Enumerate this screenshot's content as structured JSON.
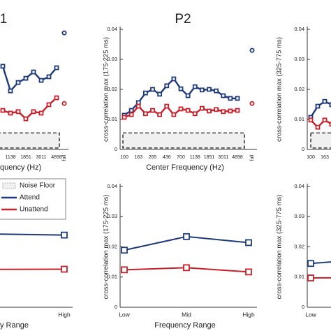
{
  "chart_data": [
    {
      "type": "line",
      "title": "1",
      "xlabel": "quency (Hz)",
      "categories": [
        null,
        "1138",
        null,
        "1851",
        null,
        "3011",
        null,
        "4898"
      ],
      "extra_category": "full",
      "ylim": [
        0,
        0.04
      ],
      "noise_floor": 0.0055,
      "series": [
        {
          "name": "Attend",
          "color": "#1f3a7a",
          "values": [
            0.0277,
            0.0195,
            0.0223,
            0.0237,
            0.0258,
            0.023,
            0.0242,
            0.0272
          ],
          "extra_value": 0.0388
        },
        {
          "name": "Unattend",
          "color": "#c8202a",
          "values": [
            0.013,
            0.0121,
            0.0126,
            0.0102,
            0.0126,
            0.0121,
            0.0149,
            0.0172
          ],
          "extra_value": 0.0153
        }
      ]
    },
    {
      "type": "line",
      "title": "P2",
      "xlabel": "Center Frequency (Hz)",
      "ylabel": "cross-correlation max (175-225 ms)",
      "categories": [
        "100",
        null,
        "163",
        null,
        "265",
        null,
        "436",
        null,
        "700",
        null,
        "1138",
        null,
        "1851",
        null,
        "3011",
        null,
        "4898"
      ],
      "extra_category": "full",
      "ylim": [
        0,
        0.04
      ],
      "yticks": [
        0,
        0.01,
        0.02,
        0.03,
        0.04
      ],
      "noise_floor": 0.0055,
      "series": [
        {
          "name": "Attend",
          "color": "#1f3a7a",
          "values": [
            0.0114,
            0.013,
            0.0156,
            0.0188,
            0.02,
            0.0184,
            0.0212,
            0.0235,
            0.0202,
            0.0179,
            0.0209,
            0.0198,
            0.02,
            0.0195,
            0.0179,
            0.017,
            0.017
          ],
          "extra_value": 0.033
        },
        {
          "name": "Unattend",
          "color": "#c8202a",
          "values": [
            0.0107,
            0.0116,
            0.0144,
            0.0119,
            0.013,
            0.0116,
            0.0144,
            0.0116,
            0.0135,
            0.013,
            0.0119,
            0.0137,
            0.0128,
            0.0133,
            0.0126,
            0.0128,
            0.013
          ],
          "extra_value": 0.0153
        }
      ]
    },
    {
      "type": "line",
      "ylabel": "cross-correlation max (325-775 ms)",
      "categories": [
        "100",
        null,
        "163",
        null
      ],
      "ylim": [
        0,
        0.04
      ],
      "yticks": [
        0,
        0.01,
        0.02,
        0.03,
        0.04
      ],
      "noise_floor": 0.0055,
      "series": [
        {
          "name": "Attend",
          "color": "#1f3a7a",
          "values": [
            0.0107,
            0.0144,
            0.016,
            0.0149
          ]
        },
        {
          "name": "Unattend",
          "color": "#c8202a",
          "values": [
            0.0098,
            0.0074,
            0.0098,
            0.0084
          ]
        }
      ]
    },
    {
      "type": "line",
      "xlabel": "y Range",
      "legend": "upper left",
      "noise_floor_name": "Noise Floor",
      "categories": [
        null,
        "High"
      ],
      "ylim": [
        0,
        0.04
      ],
      "series": [
        {
          "name": "Attend",
          "color": "#1f3a7a",
          "values": [
            0.0245,
            0.0239
          ]
        },
        {
          "name": "Unattend",
          "color": "#c8202a",
          "values": [
            0.0125,
            0.0126
          ]
        }
      ]
    },
    {
      "type": "line",
      "xlabel": "Frequency Range",
      "ylabel": "cross-correlation max (175-225 ms)",
      "categories": [
        "Low",
        "Mid",
        "High"
      ],
      "ylim": [
        0,
        0.04
      ],
      "yticks": [
        0,
        0.01,
        0.02,
        0.03,
        0.04
      ],
      "series": [
        {
          "name": "Attend",
          "color": "#1f3a7a",
          "values": [
            0.0189,
            0.0234,
            0.0214
          ]
        },
        {
          "name": "Unattend",
          "color": "#c8202a",
          "values": [
            0.0124,
            0.0131,
            0.0117
          ]
        }
      ]
    },
    {
      "type": "line",
      "ylabel": "cross-correlation max (325-775 ms)",
      "categories": [
        "Low",
        null
      ],
      "ylim": [
        0,
        0.04
      ],
      "yticks": [
        0,
        0.01,
        0.02,
        0.03,
        0.04
      ],
      "series": [
        {
          "name": "Attend",
          "color": "#1f3a7a",
          "values": [
            0.0145,
            0.016
          ]
        },
        {
          "name": "Unattend",
          "color": "#c8202a",
          "values": [
            0.0097,
            0.0098
          ]
        }
      ]
    }
  ]
}
